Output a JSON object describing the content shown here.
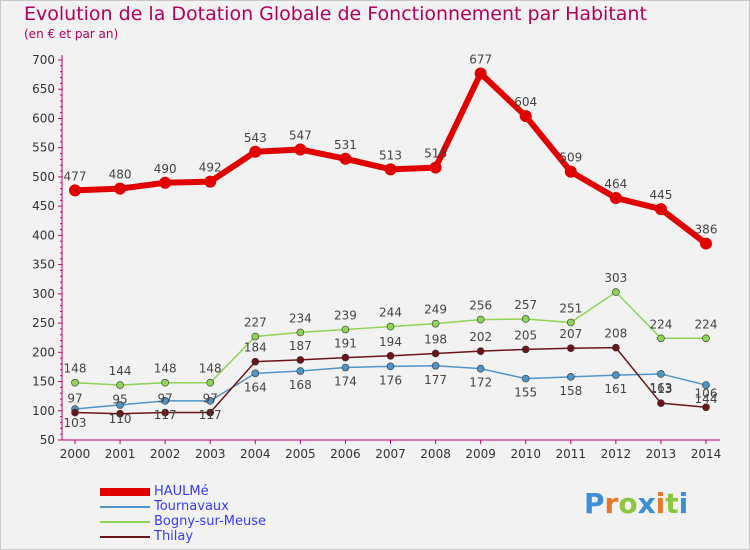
{
  "title": "Evolution de la Dotation Globale de Fonctionnement par Habitant",
  "subtitle": "(en € et par an)",
  "logo": {
    "text": "Proxiti",
    "letters": [
      "P",
      "r",
      "o",
      "x",
      "i",
      "t",
      "i"
    ],
    "colors": [
      "#3b8fd6",
      "#e8762d",
      "#8dc63f",
      "#3b8fd6",
      "#e8762d",
      "#8dc63f",
      "#3b8fd6"
    ]
  },
  "chart_data": {
    "type": "line",
    "title": "Evolution de la Dotation Globale de Fonctionnement par Habitant",
    "subtitle": "(en € et par an)",
    "xlabel": "",
    "ylabel": "",
    "x": [
      2000,
      2001,
      2002,
      2003,
      2004,
      2005,
      2006,
      2007,
      2008,
      2009,
      2010,
      2011,
      2012,
      2013,
      2014
    ],
    "ylim": [
      50,
      700
    ],
    "yticks": [
      50,
      100,
      150,
      200,
      250,
      300,
      350,
      400,
      450,
      500,
      550,
      600,
      650,
      700
    ],
    "grid": false,
    "legend_position": "bottom-left",
    "series": [
      {
        "name": "HAULMé",
        "color": "#e00000",
        "values": [
          477,
          480,
          490,
          492,
          543,
          547,
          531,
          513,
          516,
          677,
          604,
          509,
          464,
          445,
          386
        ],
        "labels": [
          "477",
          "480",
          "490",
          "492",
          "543",
          "547",
          "531",
          "513",
          "516",
          "677",
          "604",
          "509",
          "464",
          "445",
          "386"
        ]
      },
      {
        "name": "Tournavaux",
        "color": "#4f95c8",
        "values": [
          103,
          110,
          117,
          117,
          164,
          168,
          174,
          176,
          177,
          172,
          155,
          158,
          161,
          163,
          144
        ],
        "labels": [
          "103",
          "110",
          "117",
          "117",
          "164",
          "168",
          "174",
          "176",
          "177",
          "172",
          "155",
          "158",
          "161",
          "163",
          "144"
        ]
      },
      {
        "name": "Bogny-sur-Meuse",
        "color": "#8ed455",
        "values": [
          148,
          144,
          148,
          148,
          227,
          234,
          239,
          244,
          249,
          256,
          257,
          251,
          303,
          224,
          224
        ],
        "labels": [
          "148",
          "144",
          "148",
          "148",
          "227",
          "234",
          "239",
          "244",
          "249",
          "256",
          "257",
          "251",
          "303",
          "224",
          "224"
        ]
      },
      {
        "name": "Thilay",
        "color": "#6b1518",
        "values": [
          97,
          95,
          97,
          97,
          184,
          187,
          191,
          194,
          198,
          202,
          205,
          207,
          208,
          113,
          106
        ],
        "labels": [
          "97",
          "95",
          "97",
          "97",
          "184",
          "187",
          "191",
          "194",
          "198",
          "202",
          "205",
          "207",
          "208",
          "113",
          "106"
        ]
      }
    ]
  }
}
